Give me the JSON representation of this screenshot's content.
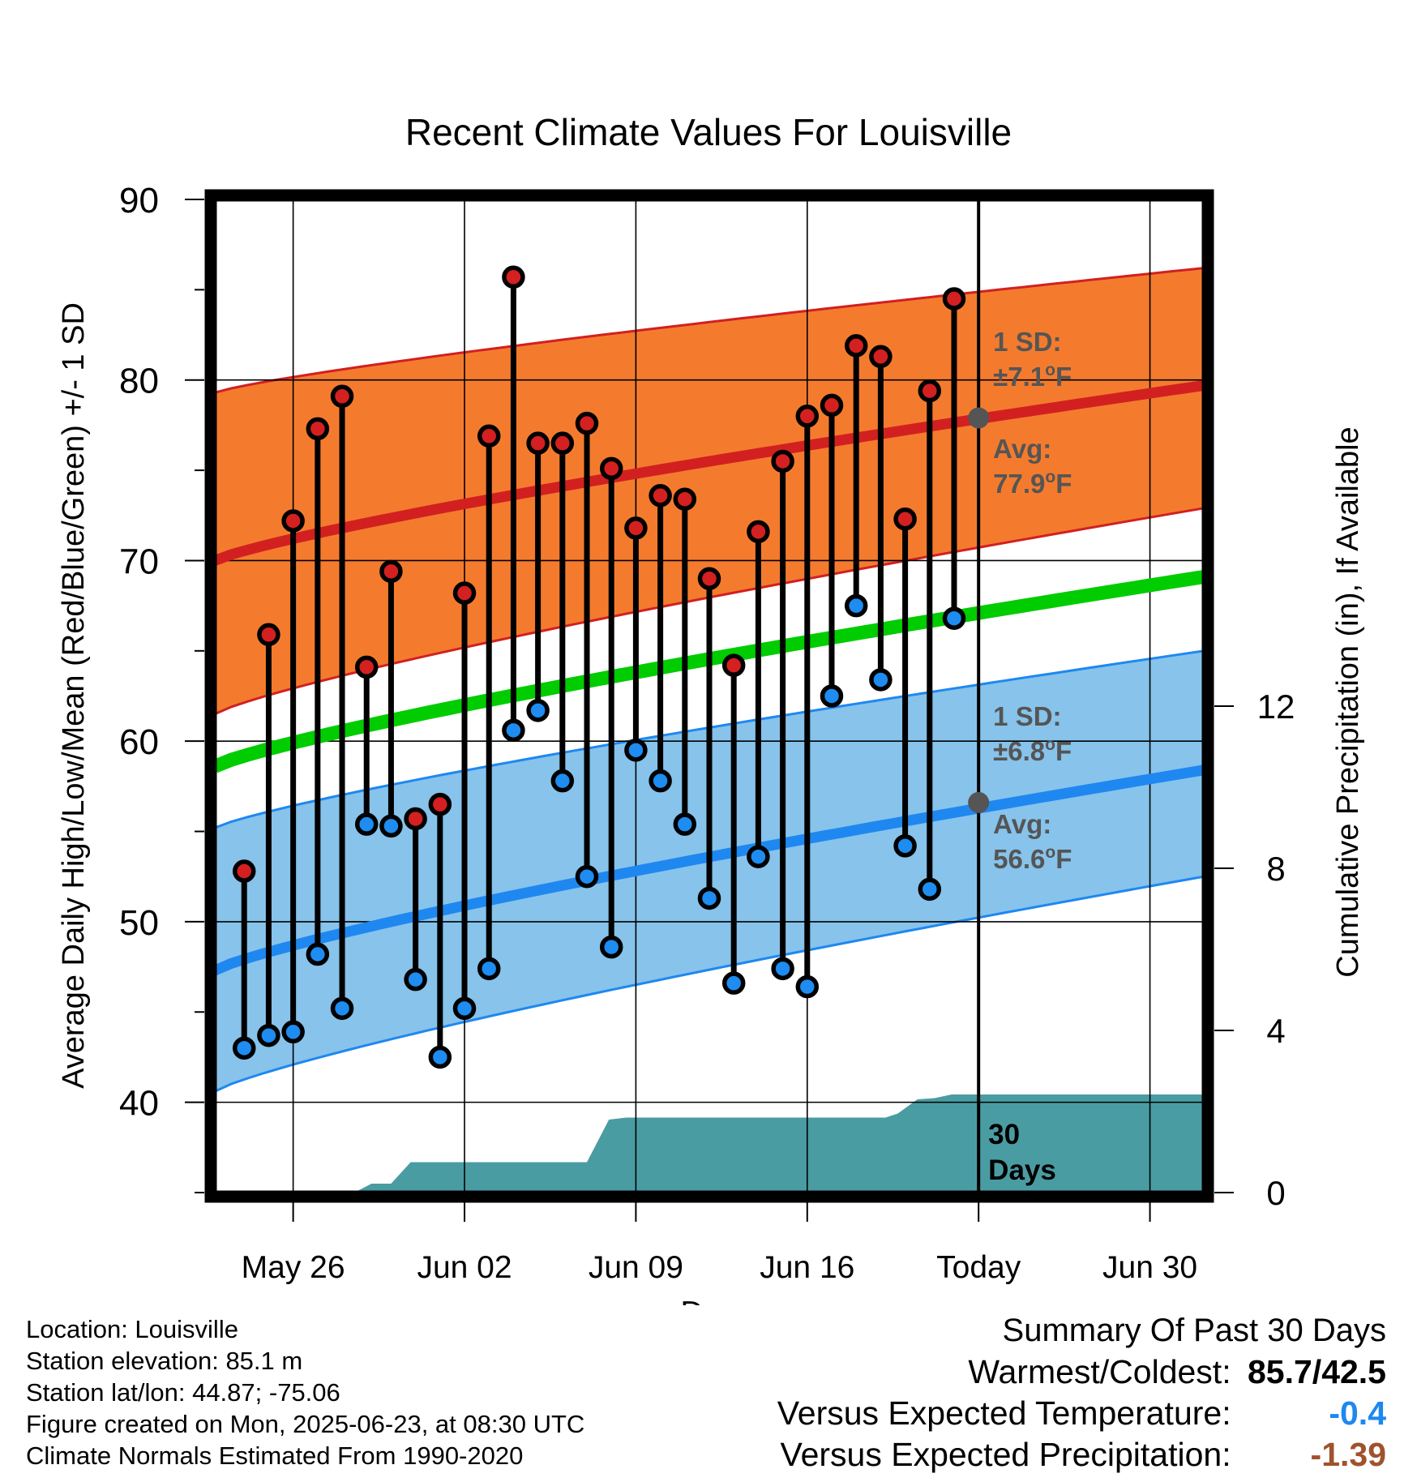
{
  "chart_data": {
    "type": "line",
    "title": "Recent Climate Values For Louisville",
    "xlabel": "Day",
    "ylabel_left": "Average Daily High/Low/Mean (Red/Blue/Green) +/- 1 SD",
    "ylabel_right": "Cumulative Precipitation (in), If Available",
    "x_ticks": [
      {
        "day": 3,
        "label": "May 26"
      },
      {
        "day": 10,
        "label": "Jun 02"
      },
      {
        "day": 17,
        "label": "Jun 09"
      },
      {
        "day": 24,
        "label": "Jun 16"
      },
      {
        "day": 31,
        "label": "Today"
      },
      {
        "day": 38,
        "label": "Jun 30"
      }
    ],
    "xlim": [
      -0.2,
      40.2
    ],
    "ylim_left": [
      35,
      90
    ],
    "y_ticks_left": [
      40,
      50,
      60,
      70,
      80,
      90
    ],
    "ylim_right": [
      0,
      24.5
    ],
    "y_ticks_right": [
      0,
      4,
      8,
      12
    ],
    "grid": true,
    "normals": {
      "high_avg": [
        70.0,
        79.7
      ],
      "high_sd_upper": [
        79.3,
        86.2
      ],
      "high_sd_lower": [
        61.5,
        72.9
      ],
      "low_avg": [
        47.3,
        58.4
      ],
      "low_sd_upper": [
        55.2,
        65.0
      ],
      "low_sd_lower": [
        40.6,
        52.5
      ],
      "mean_avg": [
        58.6,
        69.1
      ]
    },
    "daily_highs": [
      52.8,
      65.9,
      72.2,
      77.3,
      79.1,
      64.1,
      69.4,
      55.7,
      56.5,
      68.2,
      76.9,
      85.7,
      76.5,
      76.5,
      77.6,
      75.1,
      71.8,
      73.6,
      73.4,
      69.0,
      64.2,
      71.6,
      75.5,
      78.0,
      78.6,
      81.9,
      81.3,
      72.3,
      79.4,
      84.5
    ],
    "daily_lows": [
      43.0,
      43.7,
      43.9,
      48.2,
      45.2,
      55.4,
      55.3,
      46.8,
      42.5,
      45.2,
      47.4,
      60.6,
      61.7,
      57.8,
      52.5,
      48.6,
      59.5,
      57.8,
      55.4,
      51.3,
      46.6,
      53.6,
      47.4,
      46.4,
      62.5,
      67.5,
      63.4,
      54.2,
      51.8,
      66.8
    ],
    "cumulative_precip": [
      {
        "day": -0.2,
        "value": 0
      },
      {
        "day": 5.5,
        "value": 0
      },
      {
        "day": 6.2,
        "value": 0.22
      },
      {
        "day": 7.0,
        "value": 0.22
      },
      {
        "day": 7.8,
        "value": 0.75
      },
      {
        "day": 15.0,
        "value": 0.75
      },
      {
        "day": 15.9,
        "value": 1.8
      },
      {
        "day": 16.6,
        "value": 1.85
      },
      {
        "day": 27.2,
        "value": 1.85
      },
      {
        "day": 27.7,
        "value": 1.95
      },
      {
        "day": 28.5,
        "value": 2.3
      },
      {
        "day": 29.2,
        "value": 2.33
      },
      {
        "day": 29.9,
        "value": 2.42
      },
      {
        "day": 30.2,
        "value": 2.42
      },
      {
        "day": 40.2,
        "value": 2.42
      }
    ],
    "today_day": 31,
    "annotations": {
      "high_sd_label": "1 SD:",
      "high_sd_value": "±7.1",
      "high_avg_label": "Avg:",
      "high_avg_value": "77.9",
      "high_avg_marker": 77.9,
      "low_sd_label": "1 SD:",
      "low_sd_value": "±6.8",
      "low_avg_label": "Avg:",
      "low_avg_value": "56.6",
      "low_avg_marker": 56.6,
      "unit": "F",
      "degree": "o",
      "days_label_1": "30",
      "days_label_2": "Days"
    },
    "colors": {
      "high_band": "#f47b2e",
      "high_line": "#d22020",
      "low_band": "#87c3eb",
      "low_line": "#1e88f0",
      "mean_line": "#00cc00",
      "precip": "#4a9ca3",
      "high_dot": "#d42020",
      "low_dot": "#1e8cf0",
      "annotation_text": "#555555",
      "avg_marker": "#555555"
    }
  },
  "footer": {
    "location": "Location: Louisville",
    "elevation": "Station elevation: 85.1 m",
    "latlon": "Station lat/lon: 44.87; -75.06",
    "created": "Figure created on Mon, 2025-06-23, at 08:30 UTC",
    "normals": "Climate Normals Estimated From 1990-2020"
  },
  "summary": {
    "title": "Summary Of Past 30 Days",
    "warm_cold_label": "Warmest/Coldest:",
    "warm_cold_value": "85.7/42.5",
    "temp_label": "Versus Expected Temperature:",
    "temp_value": "-0.4",
    "temp_color": "#1e88f0",
    "precip_label": "Versus Expected Precipitation:",
    "precip_value": "-1.39",
    "precip_color": "#a0522d"
  }
}
